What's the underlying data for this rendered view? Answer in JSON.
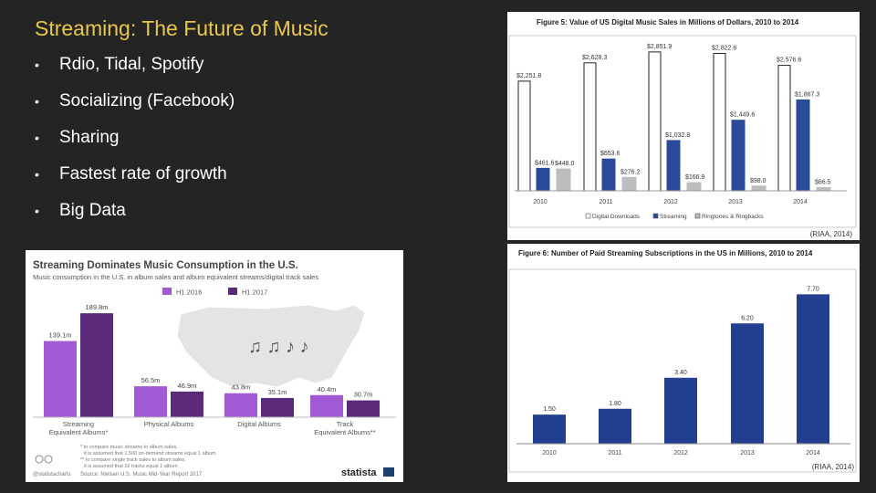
{
  "slide": {
    "title": "Streaming: The Future of Music",
    "bullets": [
      "Rdio, Tidal, Spotify",
      "Socializing (Facebook)",
      "Sharing",
      "Fastest rate of growth",
      "Big  Data"
    ]
  },
  "colors": {
    "title": "#e8c84a",
    "background": "#242424",
    "riaa_streaming": "#2a4a9a",
    "riaa_ringback": "#bdbdbd",
    "riaa_bar": "#233f8f",
    "statista_2016": "#a05bd4",
    "statista_2017": "#5a2a78"
  },
  "statista": {
    "source_note": "Source: Nielsen U.S. Music Mid-Year Report 2017",
    "handle": "@statistacharts",
    "brand": "statista",
    "footnotes": [
      "* to compare music streams to album sales,",
      "it is assumed that 1,500 on-demand streams equal 1 album",
      "** to compare single track sales to album sales,",
      "it is assumed that 10 tracks equal 1 album"
    ],
    "music_notes": "♫ ♫ ♪ ♪"
  },
  "chart_data": [
    {
      "type": "bar",
      "title": "Figure 5: Value of US Digital Music Sales in Millions of Dollars, 2010 to 2014",
      "categories": [
        "2010",
        "2011",
        "2012",
        "2013",
        "2014"
      ],
      "series": [
        {
          "name": "Digital Downloads",
          "values": [
            2251.8,
            2628.3,
            2851.9,
            2822.6,
            2576.6
          ],
          "labels": [
            "$2,251.8",
            "$2,628.3",
            "$2,851.9",
            "$2,822.6",
            "$2,576.6"
          ]
        },
        {
          "name": "Streaming",
          "values": [
            461.6,
            653.6,
            1032.8,
            1449.6,
            1867.3
          ],
          "labels": [
            "$461.6",
            "$653.6",
            "$1,032.8",
            "$1,449.6",
            "$1,867.3"
          ]
        },
        {
          "name": "Ringtones & Ringbacks",
          "values": [
            448.0,
            276.2,
            166.9,
            98.0,
            66.5
          ],
          "labels": [
            "$448.0",
            "$276.2",
            "$166.9",
            "$98.0",
            "$66.5"
          ]
        }
      ],
      "source": "(RIAA, 2014)",
      "ylim": [
        0,
        3000
      ],
      "legend": "bottom"
    },
    {
      "type": "bar",
      "title": "Figure 6: Number of Paid Streaming Subscriptions in the US in Millions, 2010 to 2014",
      "categories": [
        "2010",
        "2011",
        "2012",
        "2013",
        "2014"
      ],
      "values": [
        1.5,
        1.8,
        3.4,
        6.2,
        7.7
      ],
      "labels": [
        "1.50",
        "1.80",
        "3.40",
        "6.20",
        "7.70"
      ],
      "source": "(RIAA, 2014)",
      "ylim": [
        0,
        8
      ]
    },
    {
      "type": "bar",
      "title": "Streaming Dominates Music Consumption in the U.S.",
      "subtitle": "Music consumption in the U.S. in album sales and album equivalent streams/digital track sales",
      "categories": [
        "Streaming\nEquivalent Albums*",
        "Physical Albums",
        "Digital Albums",
        "Track\nEquivalent Albums**"
      ],
      "series": [
        {
          "name": "H1 2016",
          "values": [
            139.1,
            56.5,
            43.8,
            40.4
          ],
          "labels": [
            "139.1m",
            "56.5m",
            "43.8m",
            "40.4m"
          ]
        },
        {
          "name": "H1 2017",
          "values": [
            189.8,
            46.9,
            35.1,
            30.7
          ],
          "labels": [
            "189.8m",
            "46.9m",
            "35.1m",
            "30.7m"
          ]
        }
      ],
      "ylim": [
        0,
        200
      ],
      "legend": "top"
    }
  ]
}
